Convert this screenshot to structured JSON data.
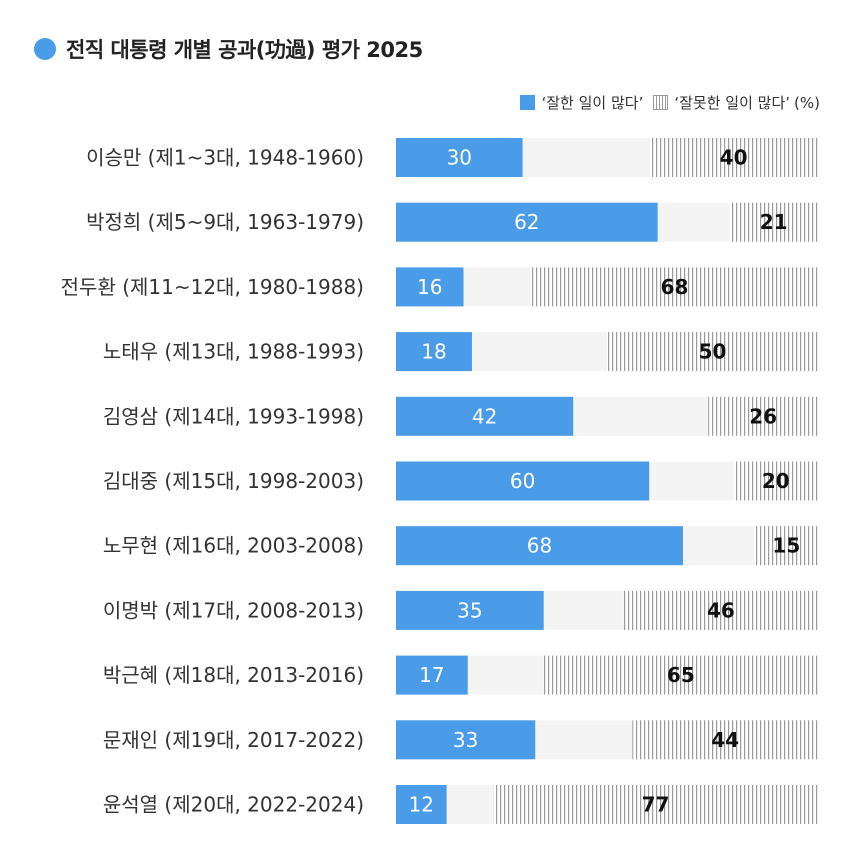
{
  "title": "전직 대통령 개별 공과(功過) 평가 2025",
  "legend": {
    "positive": "‘잘한 일이 많다’",
    "negative": "‘잘못한 일이 많다’",
    "unit": "(%)"
  },
  "colors": {
    "positive": "#4a9be8",
    "track": "#f4f4f4",
    "hatch": "#9a9a9a"
  },
  "chart_data": {
    "type": "bar",
    "title": "전직 대통령 개별 공과(功過) 평가 2025",
    "orientation": "horizontal",
    "stacked": true,
    "unit": "%",
    "xlim": [
      0,
      100
    ],
    "categories": [
      "이승만 (제1~3대, 1948-1960)",
      "박정희 (제5~9대, 1963-1979)",
      "전두환 (제11~12대, 1980-1988)",
      "노태우 (제13대, 1988-1993)",
      "김영삼 (제14대, 1993-1998)",
      "김대중 (제15대, 1998-2003)",
      "노무현 (제16대, 2003-2008)",
      "이명박 (제17대, 2008-2013)",
      "박근혜 (제18대, 2013-2016)",
      "문재인 (제19대, 2017-2022)",
      "윤석열 (제20대, 2022-2024)"
    ],
    "series": [
      {
        "name": "‘잘한 일이 많다’",
        "values": [
          30,
          62,
          16,
          18,
          42,
          60,
          68,
          35,
          17,
          33,
          12
        ]
      },
      {
        "name": "‘잘못한 일이 많다’",
        "values": [
          40,
          21,
          68,
          50,
          26,
          20,
          15,
          46,
          65,
          44,
          77
        ]
      }
    ]
  }
}
